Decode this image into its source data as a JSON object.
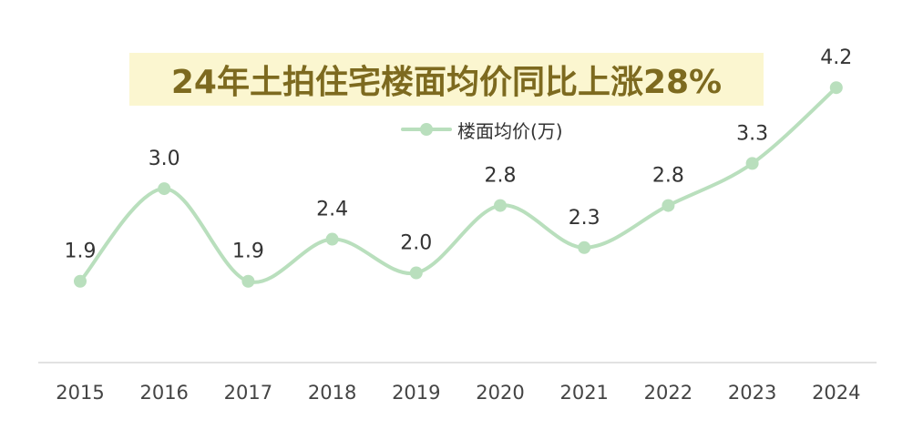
{
  "chart_data": {
    "type": "line",
    "title": "24年土拍住宅楼面均价同比上涨28%",
    "legend_position": "top-center",
    "grid": false,
    "categories": [
      "2015",
      "2016",
      "2017",
      "2018",
      "2019",
      "2020",
      "2021",
      "2022",
      "2023",
      "2024"
    ],
    "series": [
      {
        "name": "楼面均价(万)",
        "values": [
          1.9,
          3.0,
          1.9,
          2.4,
          2.0,
          2.8,
          2.3,
          2.8,
          3.3,
          4.2
        ],
        "labels": [
          "1.9",
          "3.0",
          "1.9",
          "2.4",
          "2.0",
          "2.8",
          "2.3",
          "2.8",
          "3.3",
          "4.2"
        ],
        "color": "#b9dfbd"
      }
    ],
    "ylim": [
      0,
      4.5
    ],
    "title_background": "#fbf6d0",
    "title_color": "#7d6a1f"
  }
}
